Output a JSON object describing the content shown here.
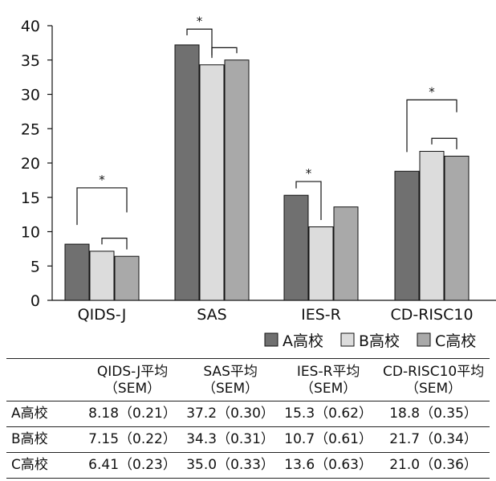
{
  "chart_data": {
    "type": "bar",
    "categories": [
      "QIDS-J",
      "SAS",
      "IES-R",
      "CD-RISC10"
    ],
    "series": [
      {
        "name": "A高校",
        "values": [
          8.18,
          37.2,
          15.3,
          18.8
        ],
        "color": "#707070"
      },
      {
        "name": "B高校",
        "values": [
          7.15,
          34.3,
          10.7,
          21.7
        ],
        "color": "#dcdcdc"
      },
      {
        "name": "C高校",
        "values": [
          6.41,
          35.0,
          13.6,
          21.0
        ],
        "color": "#a9a9a9"
      }
    ],
    "ylim": [
      0,
      40
    ],
    "yticks": [
      0,
      5,
      10,
      15,
      20,
      25,
      30,
      35,
      40
    ],
    "legend_position": "bottom-right",
    "significance": [
      {
        "category": "QIDS-J",
        "pair": [
          "A高校",
          "C高校"
        ],
        "label": "*"
      },
      {
        "category": "QIDS-J",
        "pair": [
          "B高校",
          "C高校"
        ],
        "label": ""
      },
      {
        "category": "SAS",
        "pair": [
          "A高校",
          "B高校"
        ],
        "label": "*"
      },
      {
        "category": "SAS",
        "pair": [
          "B高校",
          "C高校"
        ],
        "label": ""
      },
      {
        "category": "IES-R",
        "pair": [
          "A高校",
          "B高校"
        ],
        "label": "*"
      },
      {
        "category": "CD-RISC10",
        "pair": [
          "A高校",
          "C高校"
        ],
        "label": "*"
      },
      {
        "category": "CD-RISC10",
        "pair": [
          "B高校",
          "C高校"
        ],
        "label": ""
      }
    ]
  },
  "table": {
    "corner": "",
    "headers": [
      {
        "line1": "QIDS-J平均",
        "line2": "（SEM）"
      },
      {
        "line1": "SAS平均",
        "line2": "（SEM）"
      },
      {
        "line1": "IES-R平均",
        "line2": "（SEM）"
      },
      {
        "line1": "CD-RISC10平均",
        "line2": "（SEM）"
      }
    ],
    "rows": [
      {
        "label": "A高校",
        "cells": [
          "8.18（0.21）",
          "37.2（0.30）",
          "15.3（0.62）",
          "18.8（0.35）"
        ]
      },
      {
        "label": "B高校",
        "cells": [
          "7.15（0.22）",
          "34.3（0.31）",
          "10.7（0.61）",
          "21.7（0.34）"
        ]
      },
      {
        "label": "C高校",
        "cells": [
          "6.41（0.23）",
          "35.0（0.33）",
          "13.6（0.63）",
          "21.0（0.36）"
        ]
      }
    ]
  }
}
